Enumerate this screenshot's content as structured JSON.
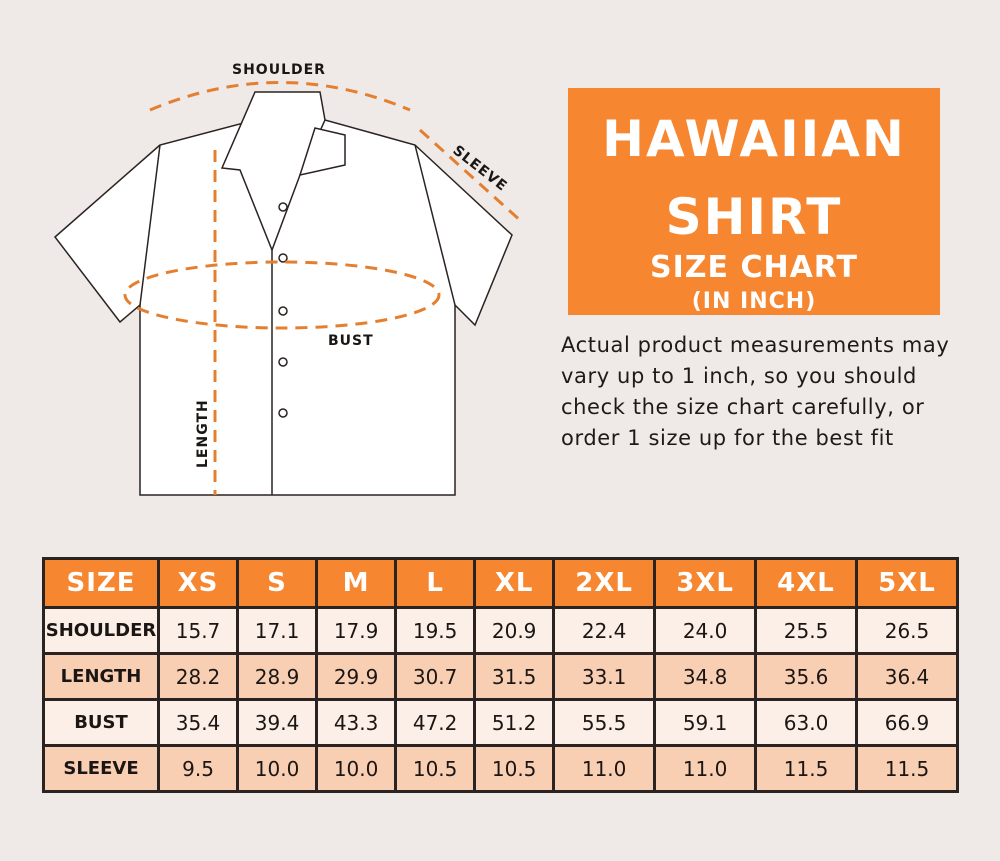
{
  "diagram": {
    "labels": {
      "shoulder": "SHOULDER",
      "sleeve": "SLEEVE",
      "bust": "BUST",
      "length": "LENGTH"
    },
    "colors": {
      "dash": "#e47f30",
      "outline": "#2a2321"
    }
  },
  "title": {
    "line1": "HAWAIIAN",
    "line2": "SHIRT",
    "line3": "SIZE CHART",
    "line4": "(IN INCH)"
  },
  "note": "Actual product measurements may vary up to 1 inch, so you should check the size chart carefully, or order 1 size up for the best fit",
  "colors": {
    "accent": "#f6862f",
    "row_light": "#fcefe7",
    "row_dark": "#f9cfb4",
    "background": "#efe9e7"
  },
  "chart_data": {
    "type": "table",
    "columns": [
      "SIZE",
      "XS",
      "S",
      "M",
      "L",
      "XL",
      "2XL",
      "3XL",
      "4XL",
      "5XL"
    ],
    "rows": [
      {
        "label": "SHOULDER",
        "values": [
          "15.7",
          "17.1",
          "17.9",
          "19.5",
          "20.9",
          "22.4",
          "24.0",
          "25.5",
          "26.5"
        ]
      },
      {
        "label": "LENGTH",
        "values": [
          "28.2",
          "28.9",
          "29.9",
          "30.7",
          "31.5",
          "33.1",
          "34.8",
          "35.6",
          "36.4"
        ]
      },
      {
        "label": "BUST",
        "values": [
          "35.4",
          "39.4",
          "43.3",
          "47.2",
          "51.2",
          "55.5",
          "59.1",
          "63.0",
          "66.9"
        ]
      },
      {
        "label": "SLEEVE",
        "values": [
          "9.5",
          "10.0",
          "10.0",
          "10.5",
          "10.5",
          "11.0",
          "11.0",
          "11.5",
          "11.5"
        ]
      }
    ]
  }
}
